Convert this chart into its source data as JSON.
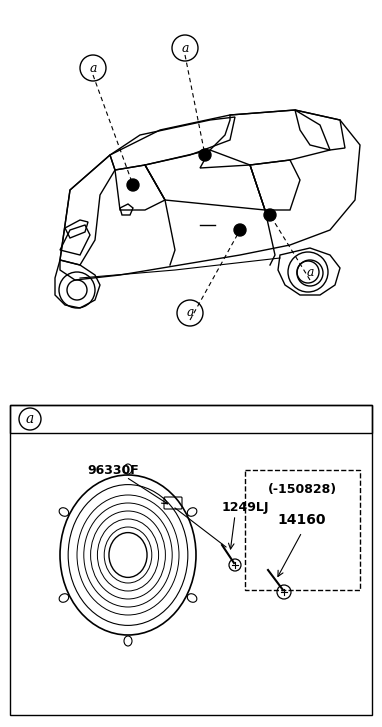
{
  "bg_color": "#ffffff",
  "line_color": "#000000",
  "gray_color": "#888888",
  "light_gray": "#cccccc",
  "label_a_text": "a",
  "part1_label": "96330F",
  "part2_label": "1249LJ",
  "part3_label": "(-150828)",
  "part4_label": "14160",
  "fig_width": 3.82,
  "fig_height": 7.27,
  "dpi": 100
}
